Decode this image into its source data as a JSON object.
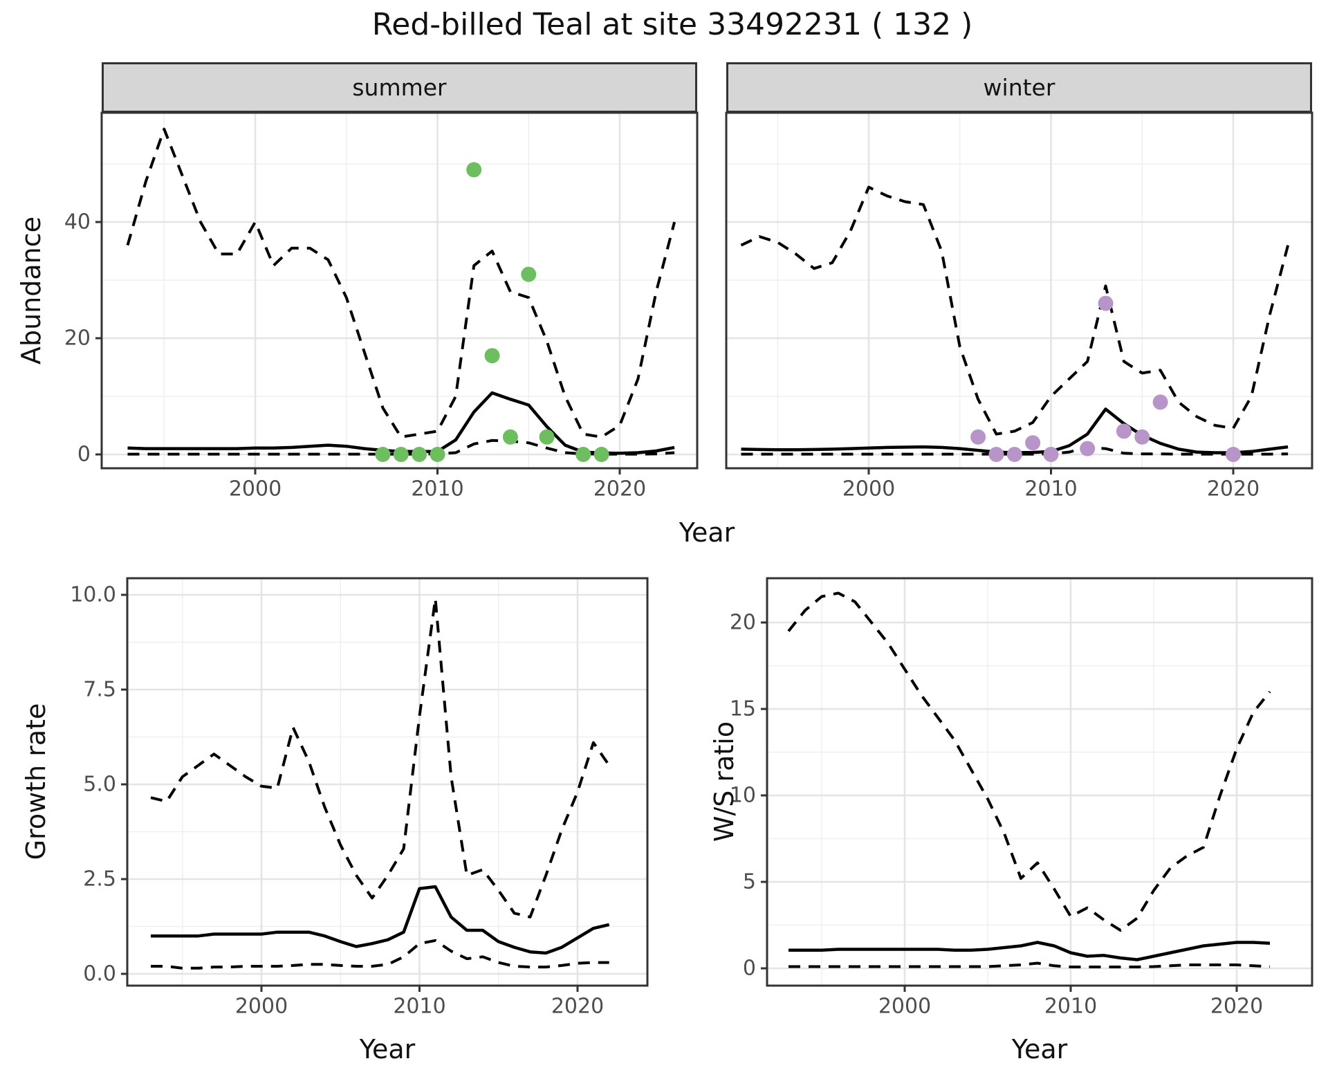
{
  "title": "Red-billed Teal at site 33492231 ( 132 )",
  "facets": [
    "summer",
    "winter"
  ],
  "axes": {
    "x_label": "Year",
    "abundance_label": "Abundance",
    "growth_label": "Growth rate",
    "ws_label": "W/S ratio"
  },
  "colors": {
    "summer_points": "#6CBE5E",
    "winter_points": "#B795C8",
    "lines": "#000000",
    "strip_fill": "#D6D6D6",
    "gridline": "#EBEBEB"
  },
  "chart_data": [
    {
      "id": "abundance-summer",
      "type": "line",
      "facet": "summer",
      "xlabel": "Year",
      "ylabel": "Abundance",
      "grid": true,
      "legend": "none",
      "xlim": [
        1991.6,
        2024.3
      ],
      "ylim": [
        -2.4,
        58.8
      ],
      "xticks": {
        "major": [
          2000,
          2010,
          2020
        ],
        "minor": [
          1995,
          2005,
          2015
        ],
        "labels": [
          "2000",
          "2010",
          "2020"
        ]
      },
      "yticks": {
        "major": [
          0,
          20,
          40
        ],
        "minor": [
          10,
          30,
          50
        ],
        "labels": [
          "0",
          "20",
          "40"
        ]
      },
      "x": [
        1993,
        1994,
        1995,
        1996,
        1997,
        1998,
        1999,
        2000,
        2001,
        2002,
        2003,
        2004,
        2005,
        2006,
        2007,
        2008,
        2009,
        2010,
        2011,
        2012,
        2013,
        2014,
        2015,
        2016,
        2017,
        2018,
        2019,
        2020,
        2021,
        2022,
        2023
      ],
      "series": [
        {
          "name": "upper_ci",
          "style": "dashed",
          "values": [
            36,
            47,
            56,
            48,
            40,
            34.5,
            34.5,
            40,
            32.5,
            35.5,
            35.5,
            33.5,
            27,
            17.5,
            8,
            3,
            3.5,
            4,
            10,
            32.5,
            35,
            28,
            27,
            19.5,
            10,
            3.5,
            3,
            5,
            13,
            28,
            40
          ]
        },
        {
          "name": "lower_ci",
          "style": "dashed",
          "values": [
            0.05,
            0.05,
            0.05,
            0.05,
            0.05,
            0.05,
            0.05,
            0.05,
            0.05,
            0.05,
            0.05,
            0.05,
            0.05,
            0.05,
            0.05,
            0.05,
            0.05,
            0.1,
            0.3,
            1.8,
            2.4,
            2.3,
            2.0,
            1.1,
            0.3,
            0.1,
            0.05,
            0.05,
            0.05,
            0.1,
            0.3
          ]
        },
        {
          "name": "median",
          "style": "solid",
          "values": [
            1.1,
            1.0,
            1.0,
            1.0,
            1.0,
            1.0,
            1.0,
            1.1,
            1.1,
            1.2,
            1.4,
            1.6,
            1.4,
            1.0,
            0.7,
            0.5,
            0.5,
            0.5,
            2.5,
            7.3,
            10.6,
            9.5,
            8.5,
            4.8,
            1.6,
            0.4,
            0.25,
            0.2,
            0.3,
            0.6,
            1.2
          ]
        }
      ],
      "points": {
        "name": "observed_counts",
        "color": "#6CBE5E",
        "data": [
          [
            2007,
            0
          ],
          [
            2008,
            0
          ],
          [
            2009,
            0
          ],
          [
            2010,
            0
          ],
          [
            2012,
            49
          ],
          [
            2013,
            17
          ],
          [
            2014,
            3
          ],
          [
            2015,
            31
          ],
          [
            2016,
            3
          ],
          [
            2018,
            0
          ],
          [
            2019,
            0
          ]
        ]
      }
    },
    {
      "id": "abundance-winter",
      "type": "line",
      "facet": "winter",
      "xlabel": "Year",
      "ylabel": "Abundance",
      "grid": true,
      "legend": "none",
      "xlim": [
        1991.6,
        2024.3
      ],
      "ylim": [
        -2.4,
        58.8
      ],
      "xticks": {
        "major": [
          2000,
          2010,
          2020
        ],
        "minor": [
          1995,
          2005,
          2015
        ],
        "labels": [
          "2000",
          "2010",
          "2020"
        ]
      },
      "yticks": {
        "major": [
          0,
          20,
          40
        ],
        "minor": [
          10,
          30,
          50
        ],
        "labels": [
          "0",
          "20",
          "40"
        ]
      },
      "x": [
        1993,
        1994,
        1995,
        1996,
        1997,
        1998,
        1999,
        2000,
        2001,
        2002,
        2003,
        2004,
        2005,
        2006,
        2007,
        2008,
        2009,
        2010,
        2011,
        2012,
        2013,
        2014,
        2015,
        2016,
        2017,
        2018,
        2019,
        2020,
        2021,
        2022,
        2023
      ],
      "series": [
        {
          "name": "upper_ci",
          "style": "dashed",
          "values": [
            36,
            37.5,
            36.5,
            34.5,
            32,
            33,
            38.5,
            46,
            44.5,
            43.5,
            43,
            35,
            18.5,
            9.5,
            3.5,
            4,
            5.5,
            10,
            13,
            16,
            29,
            16,
            14,
            14.5,
            9,
            6.5,
            5,
            4.5,
            10,
            24,
            36
          ]
        },
        {
          "name": "lower_ci",
          "style": "dashed",
          "values": [
            0.05,
            0.05,
            0.05,
            0.05,
            0.05,
            0.05,
            0.05,
            0.05,
            0.05,
            0.05,
            0.05,
            0.05,
            0.05,
            0.05,
            0.05,
            0.05,
            0.05,
            0.1,
            0.4,
            1.2,
            1.0,
            0.2,
            0.1,
            0.1,
            0.05,
            0.05,
            0.05,
            0.05,
            0.05,
            0.05,
            0.1
          ]
        },
        {
          "name": "median",
          "style": "solid",
          "values": [
            0.9,
            0.85,
            0.8,
            0.8,
            0.85,
            0.9,
            1.0,
            1.1,
            1.2,
            1.25,
            1.3,
            1.2,
            1.0,
            0.7,
            0.4,
            0.3,
            0.35,
            0.5,
            1.5,
            3.5,
            7.8,
            5.3,
            3.3,
            1.9,
            0.9,
            0.4,
            0.3,
            0.3,
            0.5,
            0.9,
            1.3
          ]
        }
      ],
      "points": {
        "name": "observed_counts",
        "color": "#B795C8",
        "data": [
          [
            2006,
            3
          ],
          [
            2007,
            0
          ],
          [
            2008,
            0
          ],
          [
            2009,
            2
          ],
          [
            2010,
            0
          ],
          [
            2012,
            1
          ],
          [
            2013,
            26
          ],
          [
            2014,
            4
          ],
          [
            2015,
            3
          ],
          [
            2016,
            9
          ],
          [
            2020,
            0
          ]
        ]
      }
    },
    {
      "id": "growth-rate",
      "type": "line",
      "facet": null,
      "xlabel": "Year",
      "ylabel": "Growth rate",
      "grid": true,
      "legend": "none",
      "xlim": [
        1991.5,
        2024.4
      ],
      "ylim": [
        -0.31,
        10.44
      ],
      "xticks": {
        "major": [
          2000,
          2010,
          2020
        ],
        "minor": [
          1995,
          2005,
          2015
        ],
        "labels": [
          "2000",
          "2010",
          "2020"
        ]
      },
      "yticks": {
        "major": [
          0,
          2.5,
          5,
          7.5,
          10
        ],
        "minor": [
          1.25,
          3.75,
          6.25,
          8.75
        ],
        "labels": [
          "0.0",
          "2.5",
          "5.0",
          "7.5",
          "10.0"
        ]
      },
      "x": [
        1993,
        1994,
        1995,
        1996,
        1997,
        1998,
        1999,
        2000,
        2001,
        2002,
        2003,
        2004,
        2005,
        2006,
        2007,
        2008,
        2009,
        2010,
        2011,
        2012,
        2013,
        2014,
        2015,
        2016,
        2017,
        2018,
        2019,
        2020,
        2021,
        2022
      ],
      "series": [
        {
          "name": "upper_ci",
          "style": "dashed",
          "values": [
            4.65,
            4.55,
            5.2,
            5.5,
            5.8,
            5.5,
            5.2,
            4.95,
            4.9,
            6.5,
            5.6,
            4.4,
            3.4,
            2.6,
            2.0,
            2.6,
            3.3,
            6.8,
            9.9,
            5.2,
            2.6,
            2.75,
            2.2,
            1.6,
            1.5,
            2.6,
            3.8,
            4.8,
            6.1,
            5.5
          ]
        },
        {
          "name": "lower_ci",
          "style": "dashed",
          "values": [
            0.2,
            0.2,
            0.15,
            0.15,
            0.18,
            0.18,
            0.2,
            0.2,
            0.2,
            0.22,
            0.25,
            0.25,
            0.22,
            0.2,
            0.2,
            0.25,
            0.45,
            0.8,
            0.88,
            0.6,
            0.4,
            0.45,
            0.3,
            0.2,
            0.18,
            0.18,
            0.22,
            0.28,
            0.3,
            0.3
          ]
        },
        {
          "name": "median",
          "style": "solid",
          "values": [
            1.0,
            1.0,
            1.0,
            1.0,
            1.05,
            1.05,
            1.05,
            1.05,
            1.1,
            1.1,
            1.1,
            1.0,
            0.85,
            0.72,
            0.8,
            0.9,
            1.1,
            2.25,
            2.3,
            1.5,
            1.15,
            1.15,
            0.85,
            0.7,
            0.58,
            0.55,
            0.7,
            0.95,
            1.2,
            1.3
          ]
        }
      ],
      "points": null
    },
    {
      "id": "ws-ratio",
      "type": "line",
      "facet": null,
      "xlabel": "Year",
      "ylabel": "W/S ratio",
      "grid": true,
      "legend": "none",
      "xlim": [
        1991.7,
        2024.5
      ],
      "ylim": [
        -1.0,
        22.6
      ],
      "xticks": {
        "major": [
          2000,
          2010,
          2020
        ],
        "minor": [
          1995,
          2005,
          2015
        ],
        "labels": [
          "2000",
          "2010",
          "2020"
        ]
      },
      "yticks": {
        "major": [
          0,
          5,
          10,
          15,
          20
        ],
        "minor": [
          2.5,
          7.5,
          12.5,
          17.5
        ],
        "labels": [
          "0",
          "5",
          "10",
          "15",
          "20"
        ]
      },
      "x": [
        1993,
        1994,
        1995,
        1996,
        1997,
        1998,
        1999,
        2000,
        2001,
        2002,
        2003,
        2004,
        2005,
        2006,
        2007,
        2008,
        2009,
        2010,
        2011,
        2012,
        2013,
        2014,
        2015,
        2016,
        2017,
        2018,
        2019,
        2020,
        2021,
        2022
      ],
      "series": [
        {
          "name": "upper_ci",
          "style": "dashed",
          "values": [
            19.5,
            20.7,
            21.5,
            21.7,
            21.2,
            20.0,
            18.8,
            17.3,
            15.8,
            14.5,
            13.2,
            11.5,
            9.8,
            7.8,
            5.2,
            6.1,
            4.6,
            3.0,
            3.5,
            2.8,
            2.2,
            2.9,
            4.5,
            5.8,
            6.5,
            7.0,
            10.0,
            12.7,
            14.8,
            16.0
          ]
        },
        {
          "name": "lower_ci",
          "style": "dashed",
          "values": [
            0.1,
            0.1,
            0.1,
            0.1,
            0.1,
            0.1,
            0.1,
            0.1,
            0.1,
            0.1,
            0.1,
            0.1,
            0.1,
            0.15,
            0.2,
            0.3,
            0.15,
            0.08,
            0.08,
            0.08,
            0.08,
            0.08,
            0.1,
            0.15,
            0.2,
            0.2,
            0.2,
            0.2,
            0.15,
            0.1
          ]
        },
        {
          "name": "median",
          "style": "solid",
          "values": [
            1.05,
            1.05,
            1.05,
            1.1,
            1.1,
            1.1,
            1.1,
            1.1,
            1.1,
            1.1,
            1.05,
            1.05,
            1.1,
            1.2,
            1.3,
            1.5,
            1.3,
            0.9,
            0.7,
            0.75,
            0.6,
            0.5,
            0.7,
            0.9,
            1.1,
            1.3,
            1.4,
            1.5,
            1.5,
            1.45
          ]
        }
      ],
      "points": null
    }
  ]
}
